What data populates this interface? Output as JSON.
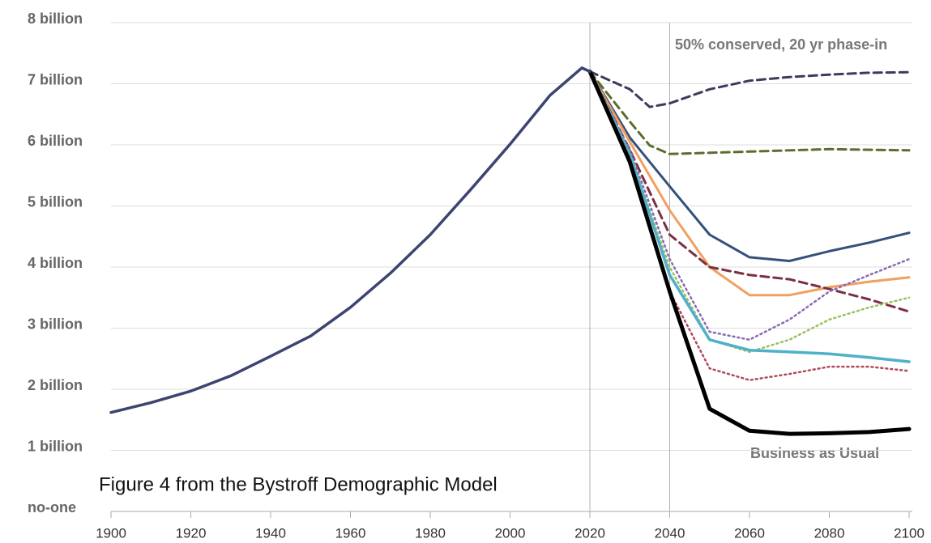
{
  "chart_data": {
    "type": "line",
    "annotations": [
      "Figure 4 from the Bystroff Demographic Model",
      "50% conserved, 20 yr phase-in",
      "Business as Usual"
    ],
    "xlim": [
      1900,
      2100
    ],
    "xticks": [
      1900,
      1920,
      1940,
      1960,
      1980,
      2000,
      2020,
      2040,
      2060,
      2080,
      2100
    ],
    "ylim": [
      0,
      8
    ],
    "yticks": [
      {
        "value": 0,
        "label": "no-one"
      },
      {
        "value": 1,
        "label": "1 billion"
      },
      {
        "value": 2,
        "label": "2 billion"
      },
      {
        "value": 3,
        "label": "3 billion"
      },
      {
        "value": 4,
        "label": "4 billion"
      },
      {
        "value": 5,
        "label": "5 billion"
      },
      {
        "value": 6,
        "label": "6 billion"
      },
      {
        "value": 7,
        "label": "7 billion"
      },
      {
        "value": 8,
        "label": "8 billion"
      }
    ],
    "grid": true,
    "vlines": [
      2020,
      2040
    ],
    "series": [
      {
        "color": "#3d4470",
        "style": "solid",
        "width": 3.5,
        "x": [
          1900,
          1910,
          1920,
          1930,
          1940,
          1950,
          1960,
          1970,
          1980,
          1990,
          2000,
          2010,
          2018,
          2020
        ],
        "values": [
          1.62,
          1.78,
          1.97,
          2.22,
          2.54,
          2.87,
          3.34,
          3.9,
          4.53,
          5.26,
          6.01,
          6.81,
          7.26,
          7.2
        ]
      },
      {
        "color": "#3d3a5e",
        "style": "dashed",
        "width": 3,
        "x": [
          2020,
          2030,
          2035,
          2040,
          2050,
          2060,
          2070,
          2080,
          2090,
          2100
        ],
        "values": [
          7.2,
          6.91,
          6.62,
          6.68,
          6.91,
          7.05,
          7.11,
          7.15,
          7.18,
          7.19
        ]
      },
      {
        "color": "#5a6e2e",
        "style": "dashed",
        "width": 3,
        "x": [
          2020,
          2030,
          2035,
          2040,
          2060,
          2080,
          2100
        ],
        "values": [
          7.2,
          6.38,
          5.99,
          5.85,
          5.89,
          5.93,
          5.91
        ]
      },
      {
        "color": "#34517a",
        "style": "solid",
        "width": 3,
        "x": [
          2020,
          2030,
          2040,
          2050,
          2060,
          2070,
          2080,
          2090,
          2100
        ],
        "values": [
          7.2,
          6.12,
          5.32,
          4.53,
          4.16,
          4.1,
          4.26,
          4.4,
          4.56
        ]
      },
      {
        "color": "#f0a060",
        "style": "solid",
        "width": 3,
        "x": [
          2020,
          2030,
          2040,
          2050,
          2060,
          2070,
          2080,
          2090,
          2100
        ],
        "values": [
          7.2,
          6.05,
          4.93,
          4.0,
          3.54,
          3.54,
          3.67,
          3.76,
          3.83
        ]
      },
      {
        "color": "#7a3040",
        "style": "dashed",
        "width": 3,
        "x": [
          2020,
          2030,
          2040,
          2050,
          2060,
          2070,
          2080,
          2090,
          2100
        ],
        "values": [
          7.2,
          5.92,
          4.53,
          4.0,
          3.87,
          3.8,
          3.64,
          3.47,
          3.27
        ]
      },
      {
        "color": "#8a6ab0",
        "style": "dotted",
        "width": 2.5,
        "x": [
          2020,
          2030,
          2040,
          2050,
          2060,
          2070,
          2080,
          2090,
          2100
        ],
        "values": [
          7.2,
          5.92,
          4.13,
          2.94,
          2.81,
          3.14,
          3.6,
          3.87,
          4.13
        ]
      },
      {
        "color": "#9ac060",
        "style": "dotted",
        "width": 2.5,
        "x": [
          2020,
          2030,
          2040,
          2050,
          2060,
          2070,
          2080,
          2090,
          2100
        ],
        "values": [
          7.2,
          5.85,
          4.0,
          2.81,
          2.61,
          2.81,
          3.14,
          3.34,
          3.5
        ]
      },
      {
        "color": "#4fb0c8",
        "style": "solid",
        "width": 3.5,
        "x": [
          2020,
          2030,
          2040,
          2050,
          2060,
          2070,
          2080,
          2090,
          2100
        ],
        "values": [
          7.2,
          5.85,
          3.87,
          2.81,
          2.64,
          2.61,
          2.58,
          2.52,
          2.45
        ]
      },
      {
        "color": "#b04a5a",
        "style": "dotted",
        "width": 2.5,
        "x": [
          2020,
          2030,
          2040,
          2050,
          2060,
          2070,
          2080,
          2090,
          2100
        ],
        "values": [
          7.2,
          5.79,
          3.6,
          2.34,
          2.15,
          2.25,
          2.37,
          2.37,
          2.3
        ]
      },
      {
        "color": "#000000",
        "style": "solid",
        "width": 5,
        "x": [
          2020,
          2030,
          2040,
          2050,
          2060,
          2070,
          2080,
          2090,
          2100
        ],
        "values": [
          7.2,
          5.72,
          3.6,
          1.68,
          1.32,
          1.27,
          1.28,
          1.3,
          1.35
        ]
      }
    ]
  }
}
